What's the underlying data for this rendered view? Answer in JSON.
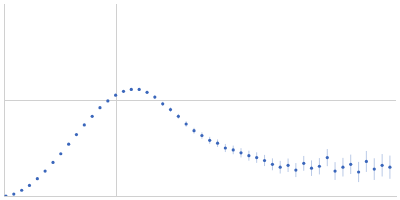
{
  "chart_data": {
    "type": "scatter",
    "marker": "circle",
    "color": "#3a66bb",
    "grid": true,
    "tick_labels": false,
    "x": [
      0.0017,
      0.0087,
      0.0157,
      0.0226,
      0.0296,
      0.0365,
      0.0435,
      0.0504,
      0.0574,
      0.0643,
      0.0713,
      0.0783,
      0.0852,
      0.0922,
      0.0991,
      0.1061,
      0.113,
      0.12,
      0.127,
      0.1339,
      0.1409,
      0.1478,
      0.1548,
      0.1617,
      0.1687,
      0.1757,
      0.1826,
      0.1896,
      0.1965,
      0.2035,
      0.2104,
      0.2174,
      0.2243,
      0.2313,
      0.2383,
      0.2452,
      0.2522,
      0.2591,
      0.2661,
      0.273,
      0.28,
      0.287,
      0.2939,
      0.3009,
      0.3078,
      0.3148,
      0.3217,
      0.3287,
      0.3357,
      0.3426
    ],
    "values": [
      0.0,
      0.02,
      0.06,
      0.11,
      0.18,
      0.26,
      0.35,
      0.44,
      0.54,
      0.64,
      0.74,
      0.83,
      0.92,
      0.99,
      1.05,
      1.09,
      1.11,
      1.11,
      1.08,
      1.03,
      0.96,
      0.9,
      0.83,
      0.75,
      0.68,
      0.63,
      0.58,
      0.55,
      0.5,
      0.48,
      0.45,
      0.42,
      0.4,
      0.37,
      0.33,
      0.3,
      0.32,
      0.27,
      0.34,
      0.29,
      0.31,
      0.4,
      0.26,
      0.3,
      0.33,
      0.25,
      0.36,
      0.28,
      0.32,
      0.3
    ],
    "errors": [
      0.002,
      0.002,
      0.003,
      0.003,
      0.004,
      0.004,
      0.005,
      0.005,
      0.006,
      0.006,
      0.007,
      0.008,
      0.009,
      0.01,
      0.011,
      0.012,
      0.014,
      0.015,
      0.017,
      0.019,
      0.021,
      0.023,
      0.025,
      0.028,
      0.03,
      0.033,
      0.036,
      0.039,
      0.042,
      0.045,
      0.048,
      0.052,
      0.055,
      0.058,
      0.062,
      0.066,
      0.07,
      0.073,
      0.077,
      0.081,
      0.085,
      0.089,
      0.093,
      0.097,
      0.101,
      0.105,
      0.109,
      0.113,
      0.117,
      0.121
    ],
    "xlim": [
      0,
      0.348
    ],
    "xticks": [
      0.1
    ],
    "ylim": [
      0,
      2
    ],
    "yticks": [
      1
    ]
  }
}
